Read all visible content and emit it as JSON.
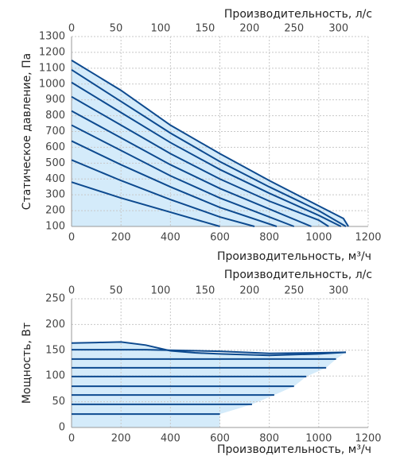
{
  "chart_data": [
    {
      "type": "line",
      "xlabel": "Производительность, м³/ч",
      "x2label": "Производительность, л/с",
      "ylabel": "Статическое давление, Па",
      "xlim": [
        0,
        1200
      ],
      "xticks": [
        0,
        200,
        400,
        600,
        800,
        1000,
        1200
      ],
      "x2lim": [
        0,
        333.3
      ],
      "x2ticks": [
        0,
        50,
        100,
        150,
        200,
        250,
        300
      ],
      "ylim": [
        100,
        1300
      ],
      "yticks": [
        100,
        200,
        300,
        400,
        500,
        600,
        700,
        800,
        900,
        1000,
        1100,
        1200,
        1300
      ],
      "grid": true,
      "color": "#0d4a8f",
      "fill_color": "#d4ebfa",
      "series": [
        {
          "x": [
            0,
            200,
            400,
            600,
            800,
            1000,
            1100,
            1120
          ],
          "values": [
            1150,
            960,
            740,
            560,
            390,
            230,
            150,
            100
          ]
        },
        {
          "x": [
            0,
            200,
            400,
            600,
            800,
            1000,
            1110
          ],
          "values": [
            1090,
            890,
            690,
            510,
            350,
            200,
            100
          ]
        },
        {
          "x": [
            0,
            200,
            400,
            600,
            800,
            1000,
            1090
          ],
          "values": [
            1010,
            820,
            630,
            460,
            310,
            170,
            100
          ]
        },
        {
          "x": [
            0,
            200,
            400,
            600,
            800,
            1000,
            1040
          ],
          "values": [
            920,
            740,
            560,
            400,
            260,
            140,
            100
          ]
        },
        {
          "x": [
            0,
            200,
            400,
            600,
            800,
            970
          ],
          "values": [
            830,
            660,
            490,
            340,
            210,
            100
          ]
        },
        {
          "x": [
            0,
            200,
            400,
            600,
            800,
            900
          ],
          "values": [
            740,
            580,
            420,
            280,
            160,
            100
          ]
        },
        {
          "x": [
            0,
            200,
            400,
            600,
            830
          ],
          "values": [
            640,
            490,
            350,
            220,
            100
          ]
        },
        {
          "x": [
            0,
            200,
            400,
            600,
            740
          ],
          "values": [
            520,
            390,
            270,
            160,
            100
          ]
        },
        {
          "x": [
            0,
            200,
            400,
            600
          ],
          "values": [
            380,
            280,
            190,
            100
          ]
        }
      ]
    },
    {
      "type": "line",
      "xlabel": "Производительность, м³/ч",
      "x2label": "Производительность, л/с",
      "ylabel": "Мощность, Вт",
      "xlim": [
        0,
        1200
      ],
      "xticks": [
        0,
        200,
        400,
        600,
        800,
        1000,
        1200
      ],
      "x2lim": [
        0,
        333.3
      ],
      "x2ticks": [
        0,
        50,
        100,
        150,
        200,
        250,
        300
      ],
      "ylim": [
        0,
        250
      ],
      "yticks": [
        0,
        50,
        100,
        150,
        200,
        250
      ],
      "grid": true,
      "color": "#0d4a8f",
      "fill_color": "#d4ebfa",
      "series": [
        {
          "x": [
            0,
            100,
            200,
            300,
            400,
            500,
            600,
            800,
            1000,
            1110
          ],
          "values": [
            164,
            165,
            166,
            160,
            149,
            145,
            143,
            140,
            143,
            146
          ]
        },
        {
          "x": [
            0,
            300,
            600,
            800,
            1000,
            1110
          ],
          "values": [
            151,
            151,
            148,
            144,
            145,
            146
          ]
        },
        {
          "x": [
            0,
            1070
          ],
          "values": [
            133,
            133
          ]
        },
        {
          "x": [
            0,
            1030
          ],
          "values": [
            116,
            116
          ]
        },
        {
          "x": [
            0,
            950
          ],
          "values": [
            99,
            99
          ]
        },
        {
          "x": [
            0,
            900
          ],
          "values": [
            80,
            80
          ]
        },
        {
          "x": [
            0,
            820
          ],
          "values": [
            63,
            63
          ]
        },
        {
          "x": [
            0,
            730
          ],
          "values": [
            45,
            45
          ]
        },
        {
          "x": [
            0,
            600
          ],
          "values": [
            26,
            26
          ]
        }
      ]
    }
  ]
}
